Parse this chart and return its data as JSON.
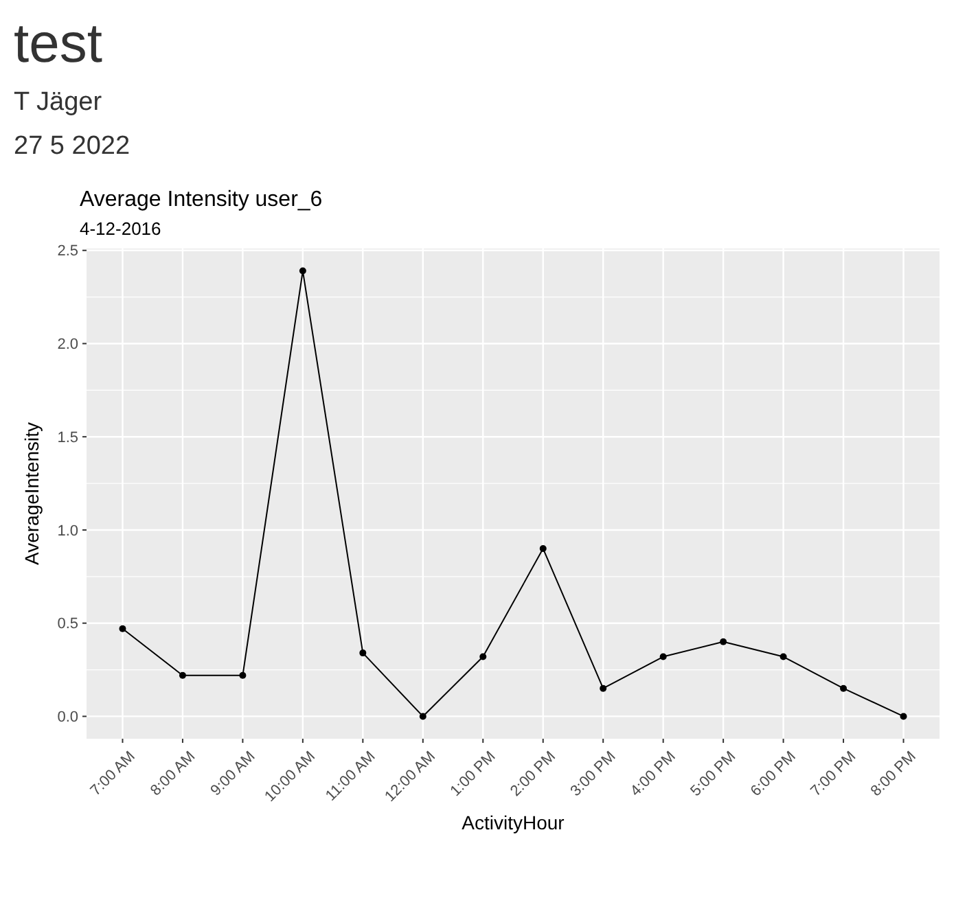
{
  "chart_data": {
    "type": "line",
    "title": "Average Intensity user_6",
    "subtitle": "4-12-2016",
    "xlabel": "ActivityHour",
    "ylabel": "AverageIntensity",
    "annotations": [
      "test",
      "T Jäger",
      "27 5 2022"
    ],
    "categories": [
      "7:00 AM",
      "8:00 AM",
      "9:00 AM",
      "10:00 AM",
      "11:00 AM",
      "12:00 AM",
      "1:00 PM",
      "2:00 PM",
      "3:00 PM",
      "4:00 PM",
      "5:00 PM",
      "6:00 PM",
      "7:00 PM",
      "8:00 PM"
    ],
    "series": [
      {
        "color": "#000000",
        "values": [
          0.47,
          0.22,
          0.22,
          2.39,
          0.34,
          0,
          0.32,
          0.9,
          0.15,
          0.32,
          0.4,
          0.32,
          0.15,
          0
        ]
      }
    ],
    "ylim": [
      -0.12,
      2.51
    ],
    "yticks": [
      {
        "value": 0,
        "label": "0.0"
      },
      {
        "value": 0.5,
        "label": "0.5"
      },
      {
        "value": 1,
        "label": "1.0"
      },
      {
        "value": 1.5,
        "label": "1.5"
      },
      {
        "value": 2,
        "label": "2.0"
      },
      {
        "value": 2.5,
        "label": "2.5"
      }
    ],
    "grid": true,
    "marker": "circle",
    "line_style": "solid"
  }
}
